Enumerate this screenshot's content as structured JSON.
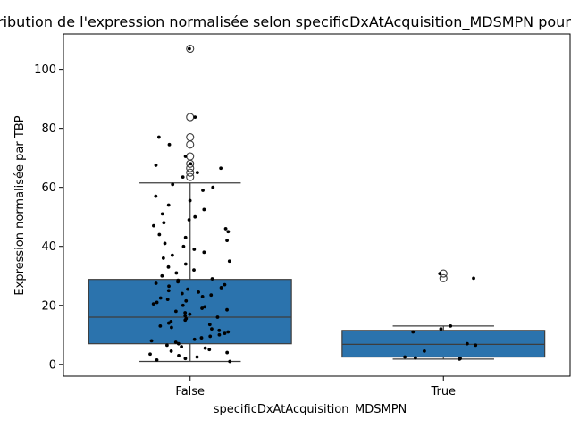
{
  "chart_data": {
    "type": "box",
    "title": "Distribution de l'expression normalisée selon specificDxAtAcquisition_MDSMPN pour TBP",
    "xlabel": "specificDxAtAcquisition_MDSMPN",
    "ylabel": "Expression normalisée par TBP",
    "ylim": [
      -4,
      112
    ],
    "yticks": [
      "0",
      "20",
      "40",
      "60",
      "80",
      "100"
    ],
    "grid": false,
    "colors": {
      "box": "#2b73ad",
      "line": "#3d3d3d",
      "point": "#000000"
    },
    "categories": [
      "False",
      "True"
    ],
    "boxes": [
      {
        "category": "False",
        "whisker_low": 1.0,
        "q1": 7.0,
        "median": 16.0,
        "q3": 28.8,
        "whisker_high": 61.5,
        "outliers": [
          107.0,
          83.8,
          77.0,
          74.5,
          70.5,
          68.0,
          66.5,
          65.0,
          63.5
        ]
      },
      {
        "category": "True",
        "whisker_low": 1.8,
        "q1": 2.5,
        "median": 6.8,
        "q3": 11.5,
        "whisker_high": 13.0,
        "outliers": [
          30.8,
          29.2
        ]
      }
    ],
    "points": [
      {
        "category": "False",
        "y": [
          107.0,
          83.8,
          77.0,
          74.5,
          70.5,
          68.0,
          67.5,
          66.5,
          65.0,
          63.5,
          61.0,
          60.0,
          59.0,
          57.0,
          55.5,
          54.0,
          52.5,
          51.0,
          50.0,
          49.0,
          48.0,
          47.0,
          46.0,
          45.0,
          44.0,
          43.0,
          42.0,
          41.0,
          40.0,
          39.0,
          38.0,
          37.0,
          36.0,
          35.0,
          34.0,
          33.0,
          32.0,
          31.0,
          30.0,
          29.0,
          28.5,
          28.0,
          27.5,
          27.0,
          26.5,
          26.0,
          25.5,
          25.0,
          24.5,
          24.0,
          23.5,
          23.0,
          22.5,
          22.0,
          21.5,
          21.0,
          20.5,
          20.0,
          19.5,
          19.0,
          18.5,
          18.0,
          17.5,
          17.0,
          16.5,
          16.0,
          15.5,
          15.0,
          14.5,
          14.0,
          13.5,
          13.0,
          12.5,
          12.0,
          11.5,
          11.0,
          10.5,
          10.0,
          9.5,
          9.0,
          8.5,
          8.0,
          7.5,
          7.0,
          6.5,
          6.0,
          5.5,
          5.0,
          4.5,
          4.0,
          3.5,
          3.0,
          2.5,
          2.0,
          1.5,
          1.0
        ]
      },
      {
        "category": "True",
        "y": [
          30.8,
          29.2,
          13.0,
          12.0,
          11.0,
          7.0,
          6.5,
          4.5,
          2.5,
          2.2,
          2.0,
          1.8
        ]
      }
    ]
  }
}
